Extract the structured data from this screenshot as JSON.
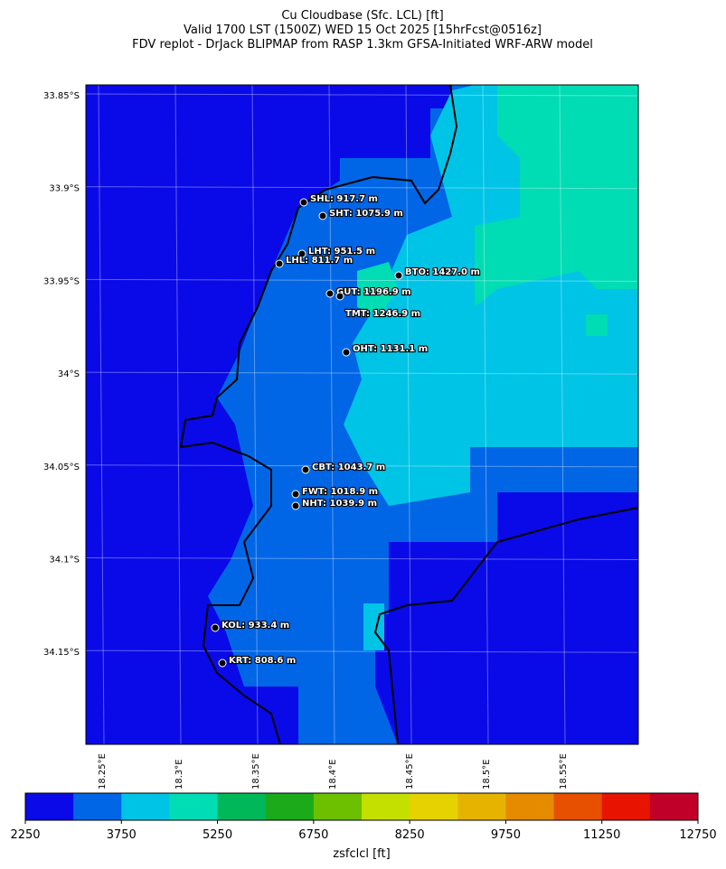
{
  "titles": [
    "Cu Cloudbase (Sfc. LCL) [ft]",
    "Valid 1700 LST (1500Z) WED 15 Oct 2025 [15hrFcst@0516z]",
    "FDV replot - DrJack BLIPMAP from RASP 1.3km GFSA-Initiated WRF-ARW model"
  ],
  "lat_labels": [
    "33.85°S",
    "33.9°S",
    "33.95°S",
    "34°S",
    "34.05°S",
    "34.1°S",
    "34.15°S"
  ],
  "lon_labels": [
    "18.25°E",
    "18.3°E",
    "18.35°E",
    "18.4°E",
    "18.45°E",
    "18.5°E",
    "18.55°E"
  ],
  "stations": [
    "SHL: 917.7 m",
    "SHT: 1075.9 m",
    "LHT: 951.5 m",
    "LHL: 811.7 m",
    "BTO: 1427.0 m",
    "GUT: 1196.9 m",
    "TMT: 1246.9 m",
    "OHT: 1131.1 m",
    "CBT: 1043.7 m",
    "FWT: 1018.9 m",
    "NHT: 1039.9 m",
    "KOL: 933.4 m",
    "KRT: 808.6 m"
  ],
  "colorbar": {
    "label": "zsfclcl [ft]",
    "lim": [
      2250,
      12750
    ],
    "ticks": [
      2250,
      3750,
      5250,
      6750,
      8250,
      9750,
      11250,
      12750
    ],
    "colors": [
      "#0a0ae8",
      "#0066e6",
      "#00c4e6",
      "#00dcb4",
      "#00b85a",
      "#1aaa1a",
      "#6cc000",
      "#c4e000",
      "#e6d200",
      "#e6b400",
      "#e68a00",
      "#e65000",
      "#e61400",
      "#c00028"
    ]
  }
}
